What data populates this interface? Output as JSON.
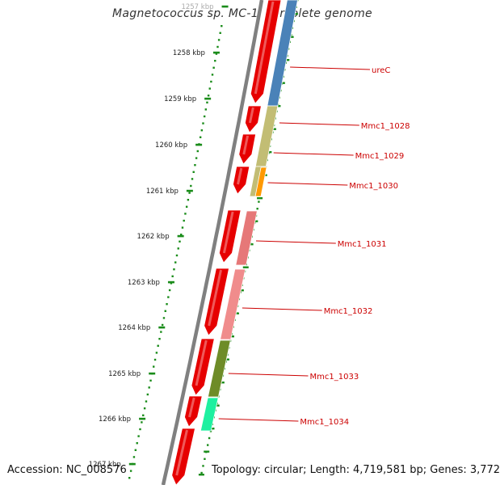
{
  "title": "Magnetococcus sp. MC-1, complete genome",
  "footer": {
    "accession": "Accession: NC_008576",
    "topology": "Topology: circular; Length: 4,719,581 bp; Genes: 3,772"
  },
  "ruler": {
    "ticks": [
      "1257 kbp",
      "1258 kbp",
      "1259 kbp",
      "1260 kbp",
      "1261 kbp",
      "1262 kbp",
      "1263 kbp",
      "1264 kbp",
      "1265 kbp",
      "1266 kbp",
      "1267 kbp"
    ]
  },
  "genes": [
    {
      "label": "ureC",
      "color": "#4a82b8"
    },
    {
      "label": "Mmc1_1028",
      "color": "#c2bd74"
    },
    {
      "label": "Mmc1_1029",
      "color": "#c2bd74"
    },
    {
      "label": "Mmc1_1030",
      "color": "#ff9900"
    },
    {
      "label": "Mmc1_1031",
      "color": "#e67878"
    },
    {
      "label": "Mmc1_1032",
      "color": "#f08c8c"
    },
    {
      "label": "Mmc1_1033",
      "color": "#6e8c28"
    },
    {
      "label": "Mmc1_1034",
      "color": "#1ef0a0"
    }
  ],
  "colors": {
    "cds": "#e60000",
    "backbone": "#808080",
    "tick": "#1a8c1a",
    "label": "#cc0000"
  }
}
